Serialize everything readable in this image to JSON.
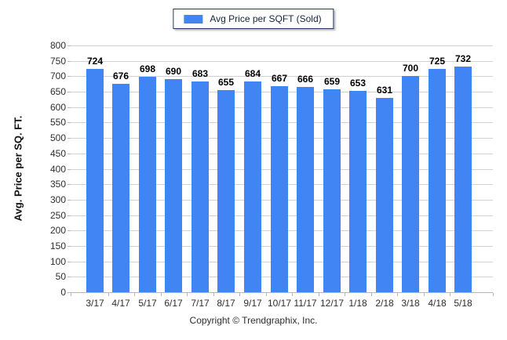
{
  "legend": {
    "label": "Avg Price per SQFT (Sold)",
    "swatch_color": "#4184F4"
  },
  "footer": {
    "copyright": "Copyright © Trendgraphix, Inc."
  },
  "chart_data": {
    "type": "bar",
    "title": "",
    "series_name": "Avg Price per SQFT (Sold)",
    "categories": [
      "3/17",
      "4/17",
      "5/17",
      "6/17",
      "7/17",
      "8/17",
      "9/17",
      "10/17",
      "11/17",
      "12/17",
      "1/18",
      "2/18",
      "3/18",
      "4/18",
      "5/18"
    ],
    "values": [
      724,
      676,
      698,
      690,
      683,
      655,
      684,
      667,
      666,
      659,
      653,
      631,
      700,
      725,
      732
    ],
    "value_labels": true,
    "xlabel": "",
    "ylabel": "Avg. Price per SQ. FT.",
    "ylim": [
      0,
      800
    ],
    "ytick_step": 50,
    "grid": true,
    "legend_position": "top-center",
    "bar_color": "#4184F4",
    "gridline_color": "#d2d2d2"
  }
}
